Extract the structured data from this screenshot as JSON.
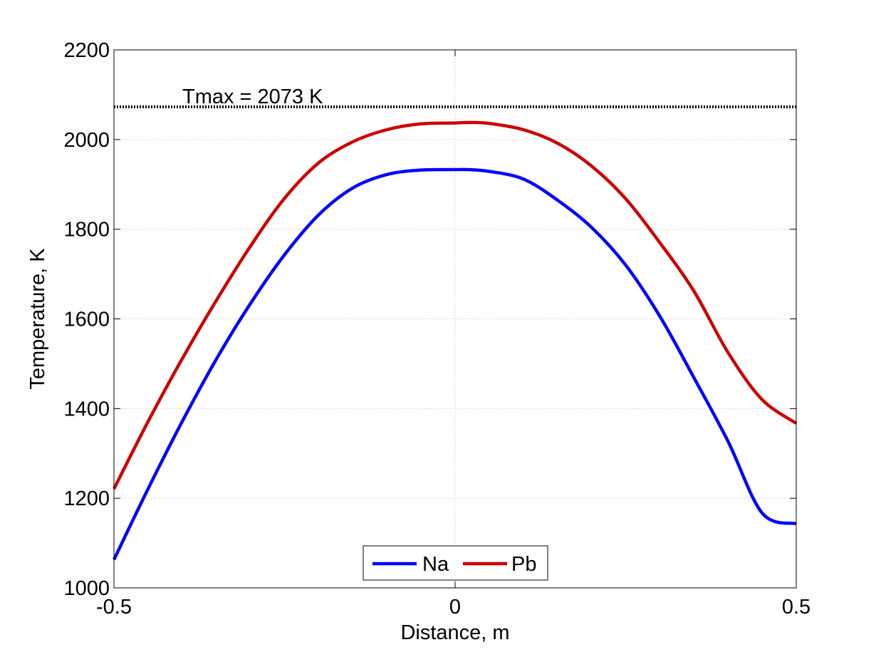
{
  "chart_data": {
    "type": "line",
    "title": "",
    "xlabel": "Distance, m",
    "ylabel": "Temperature, K",
    "xlim": [
      -0.5,
      0.5
    ],
    "ylim": [
      1000,
      2200
    ],
    "xticks": [
      -0.5,
      0,
      0.5
    ],
    "xtick_labels": [
      "-0.5",
      "0",
      "0.5"
    ],
    "yticks": [
      1000,
      1200,
      1400,
      1600,
      1800,
      2000,
      2200
    ],
    "ytick_labels": [
      "1000",
      "1200",
      "1400",
      "1600",
      "1800",
      "2000",
      "2200"
    ],
    "grid": true,
    "legend_position": "bottom-center",
    "x": [
      -0.5,
      -0.45,
      -0.4,
      -0.35,
      -0.3,
      -0.25,
      -0.2,
      -0.15,
      -0.1,
      -0.05,
      0.0,
      0.02,
      0.05,
      0.1,
      0.15,
      0.2,
      0.25,
      0.3,
      0.35,
      0.4,
      0.45,
      0.5
    ],
    "series": [
      {
        "name": "Na",
        "color": "#0000ff",
        "values": [
          1063,
          1221,
          1371,
          1510,
          1634,
          1743,
          1832,
          1892,
          1922,
          1932,
          1933,
          1933,
          1929,
          1912,
          1865,
          1804,
          1720,
          1606,
          1469,
          1327,
          1167,
          1143
        ]
      },
      {
        "name": "Pb",
        "color": "#cc0000",
        "values": [
          1221,
          1371,
          1511,
          1641,
          1762,
          1869,
          1948,
          1995,
          2022,
          2035,
          2037,
          2038,
          2036,
          2022,
          1992,
          1941,
          1868,
          1770,
          1662,
          1525,
          1420,
          1367
        ]
      }
    ],
    "reference_line": {
      "label": "Tmax = 2073 K",
      "y": 2073,
      "color": "#000000",
      "style": "dotted"
    }
  }
}
